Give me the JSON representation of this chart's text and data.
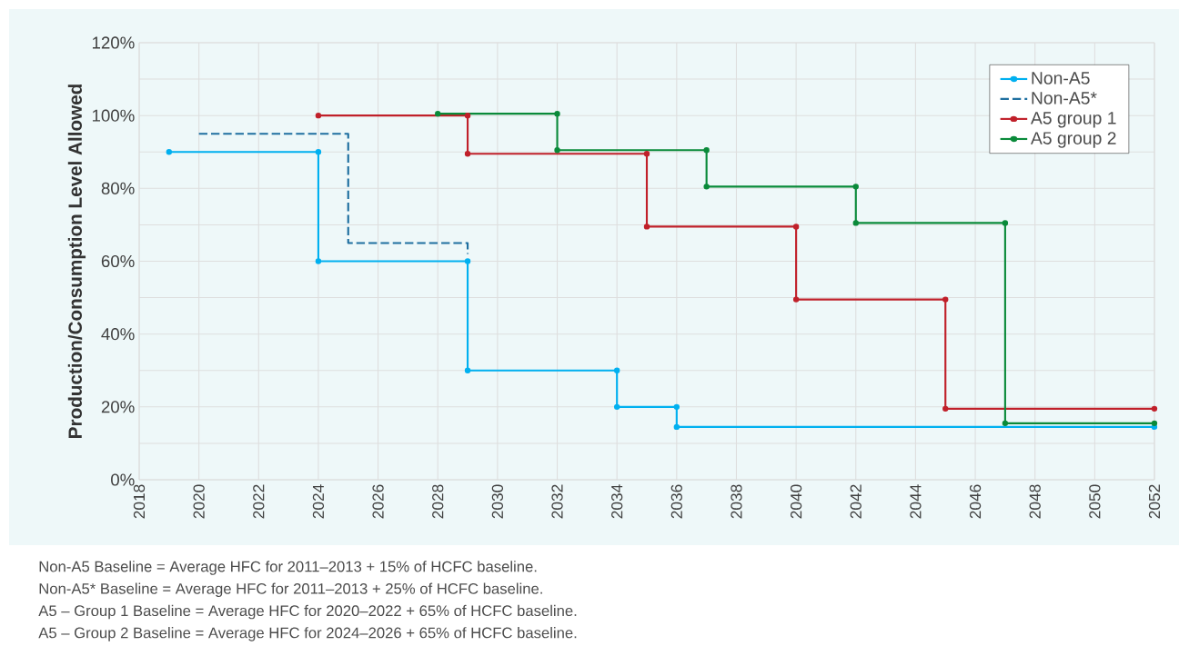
{
  "chart_data": {
    "type": "line",
    "ylabel": "Production/Consumption Level Allowed",
    "xlim": [
      2018,
      2052
    ],
    "ylim": [
      0,
      120
    ],
    "xticks": [
      2018,
      2020,
      2022,
      2024,
      2026,
      2028,
      2030,
      2032,
      2034,
      2036,
      2038,
      2040,
      2042,
      2044,
      2046,
      2048,
      2050,
      2052
    ],
    "yticks": [
      {
        "value": 0,
        "label": "0%"
      },
      {
        "value": 10,
        "label": null
      },
      {
        "value": 20,
        "label": "20%"
      },
      {
        "value": 30,
        "label": null
      },
      {
        "value": 40,
        "label": "40%"
      },
      {
        "value": 50,
        "label": null
      },
      {
        "value": 60,
        "label": "60%"
      },
      {
        "value": 70,
        "label": null
      },
      {
        "value": 80,
        "label": "80%"
      },
      {
        "value": 90,
        "label": null
      },
      {
        "value": 100,
        "label": "100%"
      },
      {
        "value": 110,
        "label": null
      },
      {
        "value": 120,
        "label": "120%"
      }
    ],
    "grid": true,
    "legend": "top right",
    "marker": "circle",
    "line_style": "solid",
    "series": [
      {
        "name": "Non-A5",
        "color": "#00b0f0",
        "x": [
          2019,
          2024,
          2024,
          2029,
          2029,
          2034,
          2034,
          2036,
          2036,
          2052
        ],
        "values": [
          90,
          90,
          60,
          60,
          30,
          30,
          20,
          20,
          14.5,
          14.5
        ]
      },
      {
        "name": "Non-A5*",
        "color": "#1f6fa0",
        "line_style": "dashed",
        "marker": "none",
        "x": [
          2020,
          2025,
          2025,
          2029,
          2029
        ],
        "values": [
          95,
          95,
          65,
          65,
          62
        ]
      },
      {
        "name": "A5 group 1",
        "color": "#c0202a",
        "x": [
          2024,
          2029,
          2029,
          2035,
          2035,
          2040,
          2040,
          2045,
          2045,
          2052
        ],
        "values": [
          100,
          100,
          89.5,
          89.5,
          69.5,
          69.5,
          49.5,
          49.5,
          19.5,
          19.5
        ]
      },
      {
        "name": "A5 group 2",
        "color": "#0a8a3a",
        "x": [
          2028,
          2032,
          2032,
          2037,
          2037,
          2042,
          2042,
          2047,
          2047,
          2052
        ],
        "values": [
          100.5,
          100.5,
          90.5,
          90.5,
          80.5,
          80.5,
          70.5,
          70.5,
          15.5,
          15.5
        ]
      }
    ],
    "annotations": [
      "Non-A5 Baseline = Average HFC for 2011–2013 + 15% of HCFC baseline.",
      "Non-A5* Baseline = Average HFC for 2011–2013 + 25% of HCFC baseline.",
      "A5 – Group 1 Baseline = Average HFC for 2020–2022 + 65% of HCFC baseline.",
      "A5 – Group 2 Baseline = Average HFC for 2024–2026 + 65% of HCFC baseline."
    ]
  }
}
